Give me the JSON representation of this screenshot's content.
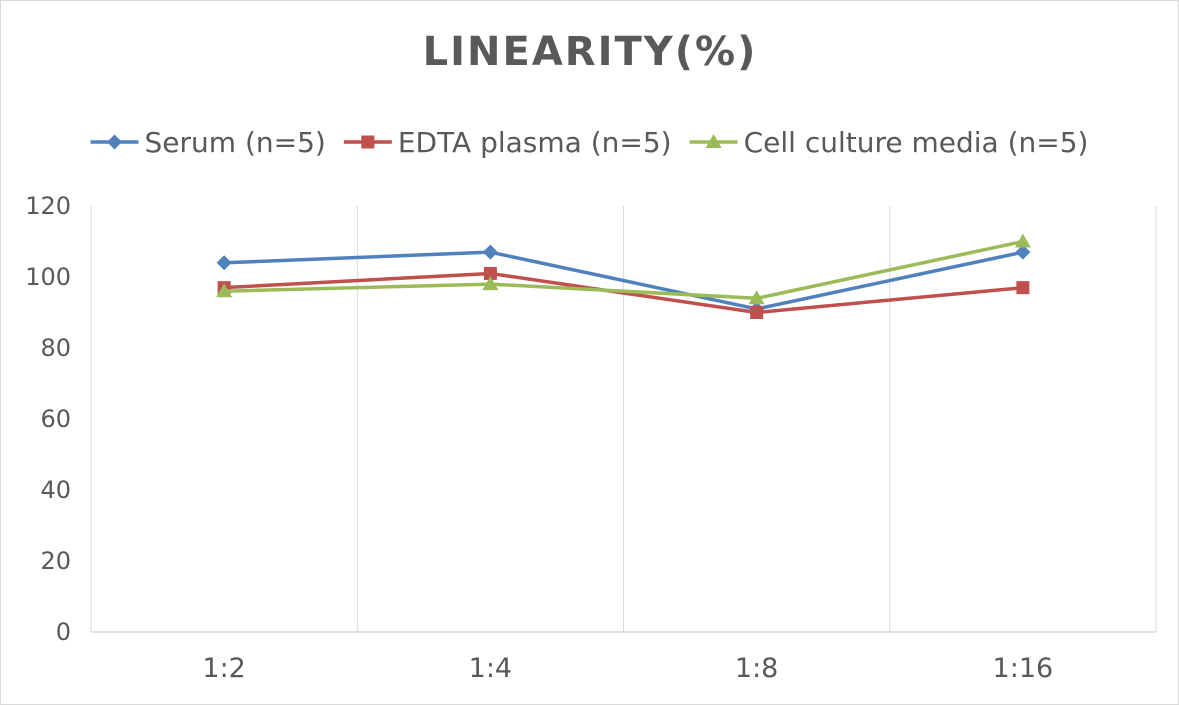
{
  "chart_data": {
    "type": "line",
    "title": "LINEARITY(%)",
    "xlabel": "",
    "ylabel": "",
    "categories": [
      "1:2",
      "1:4",
      "1:8",
      "1:16"
    ],
    "ylim": [
      0,
      120
    ],
    "yticks": [
      0,
      20,
      40,
      60,
      80,
      100,
      120
    ],
    "grid": "vertical",
    "legend_position": "top",
    "series": [
      {
        "name": "Serum (n=5)",
        "values": [
          104,
          107,
          91,
          107
        ],
        "color": "#4f81bd",
        "marker": "diamond"
      },
      {
        "name": "EDTA plasma (n=5)",
        "values": [
          97,
          101,
          90,
          97
        ],
        "color": "#c0504d",
        "marker": "square"
      },
      {
        "name": "Cell culture media (n=5)",
        "values": [
          96,
          98,
          94,
          110
        ],
        "color": "#9bbb59",
        "marker": "triangle"
      }
    ]
  }
}
